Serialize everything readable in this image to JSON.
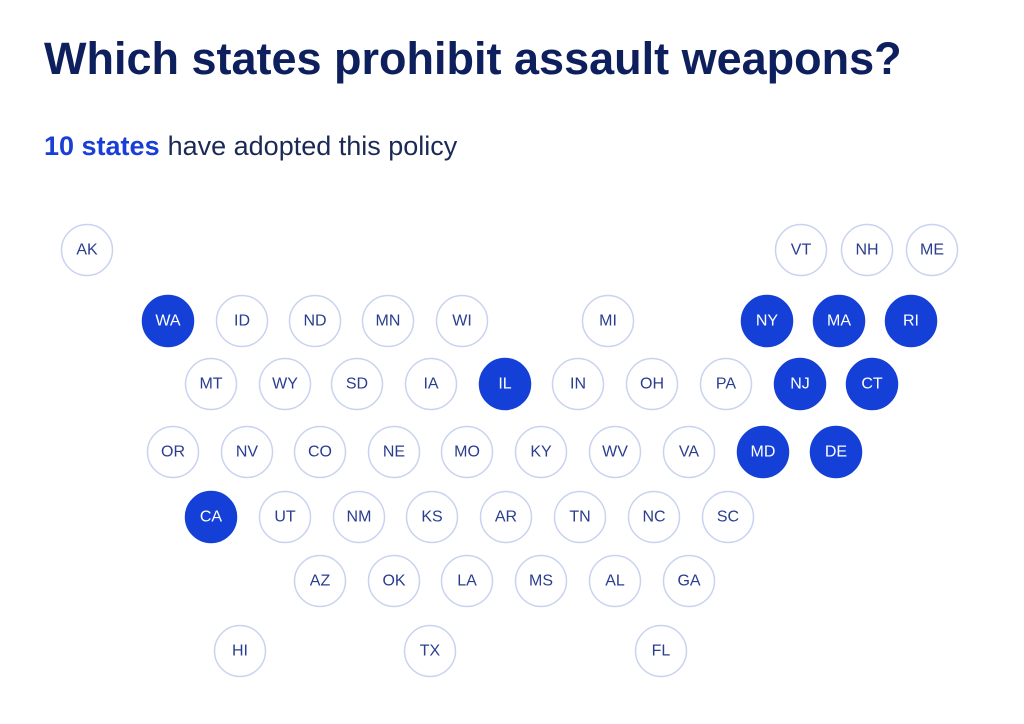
{
  "title": "Which states prohibit assault weapons?",
  "subtitle": {
    "highlight": "10 states",
    "text": "have adopted this policy"
  },
  "states": [
    {
      "label": "AK",
      "adopted": false
    },
    {
      "label": "VT",
      "adopted": false
    },
    {
      "label": "NH",
      "adopted": false
    },
    {
      "label": "ME",
      "adopted": false
    },
    {
      "label": "WA",
      "adopted": true
    },
    {
      "label": "ID",
      "adopted": false
    },
    {
      "label": "ND",
      "adopted": false
    },
    {
      "label": "MN",
      "adopted": false
    },
    {
      "label": "WI",
      "adopted": false
    },
    {
      "label": "MI",
      "adopted": false
    },
    {
      "label": "NY",
      "adopted": true
    },
    {
      "label": "MA",
      "adopted": true
    },
    {
      "label": "RI",
      "adopted": true
    },
    {
      "label": "MT",
      "adopted": false
    },
    {
      "label": "WY",
      "adopted": false
    },
    {
      "label": "SD",
      "adopted": false
    },
    {
      "label": "IA",
      "adopted": false
    },
    {
      "label": "IL",
      "adopted": true
    },
    {
      "label": "IN",
      "adopted": false
    },
    {
      "label": "OH",
      "adopted": false
    },
    {
      "label": "PA",
      "adopted": false
    },
    {
      "label": "NJ",
      "adopted": true
    },
    {
      "label": "CT",
      "adopted": true
    },
    {
      "label": "OR",
      "adopted": false
    },
    {
      "label": "NV",
      "adopted": false
    },
    {
      "label": "CO",
      "adopted": false
    },
    {
      "label": "NE",
      "adopted": false
    },
    {
      "label": "MO",
      "adopted": false
    },
    {
      "label": "KY",
      "adopted": false
    },
    {
      "label": "WV",
      "adopted": false
    },
    {
      "label": "VA",
      "adopted": false
    },
    {
      "label": "MD",
      "adopted": true
    },
    {
      "label": "DE",
      "adopted": true
    },
    {
      "label": "CA",
      "adopted": true
    },
    {
      "label": "UT",
      "adopted": false
    },
    {
      "label": "NM",
      "adopted": false
    },
    {
      "label": "KS",
      "adopted": false
    },
    {
      "label": "AR",
      "adopted": false
    },
    {
      "label": "TN",
      "adopted": false
    },
    {
      "label": "NC",
      "adopted": false
    },
    {
      "label": "SC",
      "adopted": false
    },
    {
      "label": "AZ",
      "adopted": false
    },
    {
      "label": "OK",
      "adopted": false
    },
    {
      "label": "LA",
      "adopted": false
    },
    {
      "label": "MS",
      "adopted": false
    },
    {
      "label": "AL",
      "adopted": false
    },
    {
      "label": "GA",
      "adopted": false
    },
    {
      "label": "HI",
      "adopted": false
    },
    {
      "label": "TX",
      "adopted": false
    },
    {
      "label": "FL",
      "adopted": false
    }
  ]
}
